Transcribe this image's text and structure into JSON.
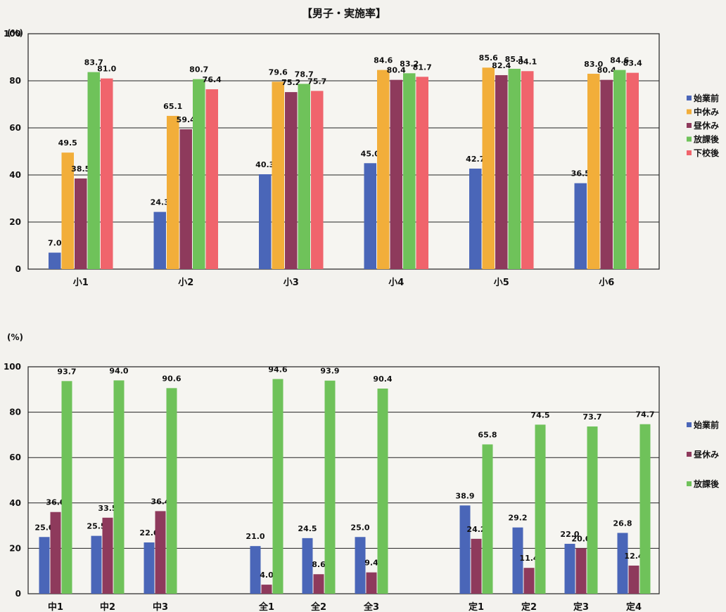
{
  "chart_data": [
    {
      "type": "bar",
      "title": "【男子・実施率】",
      "ylabel": "(%)",
      "ylim": [
        0,
        100
      ],
      "yticks": [
        0,
        20,
        40,
        60,
        80,
        100
      ],
      "grid": true,
      "legend_position": "right",
      "categories": [
        "小1",
        "小2",
        "小3",
        "小4",
        "小5",
        "小6"
      ],
      "series": [
        {
          "name": "始業前",
          "color": "#4a66b8",
          "values": [
            7.0,
            24.3,
            40.3,
            45.0,
            42.7,
            36.5
          ]
        },
        {
          "name": "中休み",
          "color": "#f2ae3a",
          "values": [
            49.5,
            65.1,
            79.6,
            84.6,
            85.6,
            83.0
          ]
        },
        {
          "name": "昼休み",
          "color": "#8e3a5c",
          "values": [
            38.5,
            59.4,
            75.2,
            80.4,
            82.4,
            80.4
          ]
        },
        {
          "name": "放課後",
          "color": "#6fc25a",
          "values": [
            83.7,
            80.7,
            78.7,
            83.2,
            85.1,
            84.6
          ]
        },
        {
          "name": "下校後",
          "color": "#f0646c",
          "values": [
            81.0,
            76.4,
            75.7,
            81.7,
            84.1,
            83.4
          ]
        }
      ]
    },
    {
      "type": "bar",
      "title": "",
      "ylabel": "(%)",
      "ylim": [
        0,
        100
      ],
      "yticks": [
        0,
        20,
        40,
        60,
        80,
        100
      ],
      "grid": true,
      "legend_position": "right",
      "categories": [
        "中1",
        "中2",
        "中3",
        "全1",
        "全2",
        "全3",
        "定1",
        "定2",
        "定3",
        "定4"
      ],
      "series": [
        {
          "name": "始業前",
          "color": "#4a66b8",
          "values": [
            25.0,
            25.5,
            22.6,
            21.0,
            24.5,
            25.0,
            38.9,
            29.2,
            22.0,
            26.8
          ]
        },
        {
          "name": "昼休み",
          "color": "#8e3a5c",
          "values": [
            36.0,
            33.5,
            36.4,
            4.0,
            8.6,
            9.4,
            24.2,
            11.4,
            20.0,
            12.4
          ]
        },
        {
          "name": "放課後",
          "color": "#6fc25a",
          "values": [
            93.7,
            94.0,
            90.6,
            94.6,
            93.9,
            90.4,
            65.8,
            74.5,
            73.7,
            74.7
          ]
        }
      ]
    }
  ]
}
